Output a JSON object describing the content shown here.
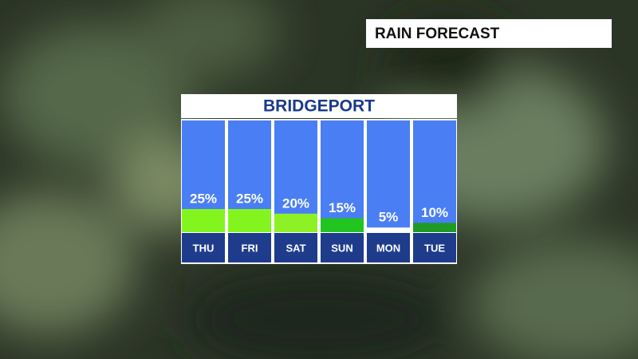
{
  "chart_data": {
    "type": "bar",
    "title": "RAIN FORECAST",
    "subtitle": "BRIDGEPORT",
    "categories": [
      "THU",
      "FRI",
      "SAT",
      "SUN",
      "MON",
      "TUE"
    ],
    "values": [
      25,
      25,
      20,
      15,
      5,
      10
    ],
    "value_labels": [
      "25%",
      "25%",
      "20%",
      "15%",
      "5%",
      "10%"
    ],
    "colors": [
      "#82f51f",
      "#82f51f",
      "#8ef126",
      "#22c41f",
      "#ffffff",
      "#1f9a24"
    ]
  }
}
